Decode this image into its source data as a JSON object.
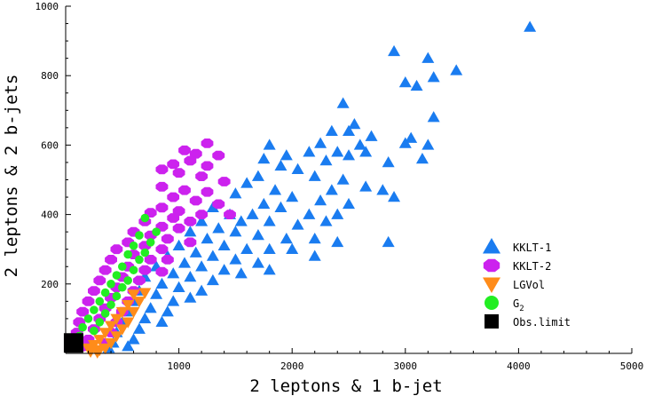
{
  "chart_data": {
    "type": "scatter",
    "title": "",
    "xlabel": "2 leptons & 1 b-jet",
    "ylabel": "2 leptons & 2 b-jets",
    "xlim": [
      0,
      5000
    ],
    "ylim": [
      0,
      1000
    ],
    "x_ticks": [
      1000,
      2000,
      3000,
      4000,
      5000
    ],
    "y_ticks": [
      200,
      400,
      600,
      800,
      1000
    ],
    "grid": false,
    "legend_position": "bottom-right",
    "series": [
      {
        "name": "KKLT-1",
        "marker": "triangle-up",
        "color": "#1a7cf0",
        "points": [
          [
            4100,
            940
          ],
          [
            2900,
            870
          ],
          [
            3200,
            850
          ],
          [
            3450,
            815
          ],
          [
            3250,
            795
          ],
          [
            3000,
            780
          ],
          [
            3100,
            770
          ],
          [
            2450,
            720
          ],
          [
            3250,
            680
          ],
          [
            2550,
            660
          ],
          [
            2500,
            640
          ],
          [
            2700,
            625
          ],
          [
            2350,
            640
          ],
          [
            3050,
            620
          ],
          [
            3000,
            605
          ],
          [
            3200,
            600
          ],
          [
            2250,
            605
          ],
          [
            2600,
            600
          ],
          [
            3150,
            560
          ],
          [
            2400,
            580
          ],
          [
            2650,
            580
          ],
          [
            2500,
            570
          ],
          [
            1800,
            600
          ],
          [
            1950,
            570
          ],
          [
            2150,
            580
          ],
          [
            2300,
            555
          ],
          [
            2850,
            550
          ],
          [
            1750,
            560
          ],
          [
            1900,
            540
          ],
          [
            2050,
            530
          ],
          [
            2200,
            510
          ],
          [
            2450,
            500
          ],
          [
            2650,
            480
          ],
          [
            2350,
            470
          ],
          [
            2800,
            470
          ],
          [
            1700,
            510
          ],
          [
            1600,
            490
          ],
          [
            1850,
            470
          ],
          [
            2000,
            450
          ],
          [
            2250,
            440
          ],
          [
            2500,
            430
          ],
          [
            2900,
            450
          ],
          [
            1500,
            460
          ],
          [
            1750,
            430
          ],
          [
            1900,
            420
          ],
          [
            2150,
            400
          ],
          [
            2400,
            400
          ],
          [
            1650,
            400
          ],
          [
            1800,
            380
          ],
          [
            2050,
            370
          ],
          [
            2300,
            380
          ],
          [
            1300,
            420
          ],
          [
            1450,
            400
          ],
          [
            1550,
            380
          ],
          [
            1200,
            380
          ],
          [
            1350,
            360
          ],
          [
            1500,
            350
          ],
          [
            1700,
            340
          ],
          [
            1950,
            330
          ],
          [
            2200,
            330
          ],
          [
            1100,
            350
          ],
          [
            1250,
            330
          ],
          [
            1400,
            310
          ],
          [
            1600,
            300
          ],
          [
            1800,
            300
          ],
          [
            2000,
            300
          ],
          [
            2400,
            320
          ],
          [
            2850,
            320
          ],
          [
            1000,
            310
          ],
          [
            1150,
            290
          ],
          [
            1300,
            280
          ],
          [
            1500,
            270
          ],
          [
            1700,
            260
          ],
          [
            900,
            280
          ],
          [
            1050,
            260
          ],
          [
            1200,
            250
          ],
          [
            1400,
            240
          ],
          [
            1800,
            240
          ],
          [
            2200,
            280
          ],
          [
            800,
            250
          ],
          [
            950,
            230
          ],
          [
            1100,
            220
          ],
          [
            1300,
            210
          ],
          [
            1550,
            230
          ],
          [
            700,
            220
          ],
          [
            850,
            200
          ],
          [
            1000,
            190
          ],
          [
            1200,
            180
          ],
          [
            650,
            180
          ],
          [
            800,
            170
          ],
          [
            950,
            150
          ],
          [
            1100,
            160
          ],
          [
            600,
            150
          ],
          [
            750,
            130
          ],
          [
            900,
            120
          ],
          [
            550,
            120
          ],
          [
            700,
            100
          ],
          [
            850,
            90
          ],
          [
            500,
            90
          ],
          [
            650,
            70
          ],
          [
            450,
            60
          ],
          [
            600,
            40
          ],
          [
            420,
            30
          ],
          [
            550,
            20
          ],
          [
            380,
            15
          ]
        ]
      },
      {
        "name": "KKLT-2",
        "marker": "octagon",
        "color": "#cc22ee",
        "points": [
          [
            1250,
            605
          ],
          [
            1050,
            585
          ],
          [
            1150,
            575
          ],
          [
            1350,
            570
          ],
          [
            1100,
            555
          ],
          [
            950,
            545
          ],
          [
            1250,
            540
          ],
          [
            850,
            530
          ],
          [
            1000,
            520
          ],
          [
            1200,
            510
          ],
          [
            1400,
            495
          ],
          [
            850,
            480
          ],
          [
            1050,
            470
          ],
          [
            1250,
            465
          ],
          [
            950,
            450
          ],
          [
            1150,
            440
          ],
          [
            1350,
            430
          ],
          [
            850,
            420
          ],
          [
            1000,
            410
          ],
          [
            1200,
            400
          ],
          [
            750,
            405
          ],
          [
            950,
            390
          ],
          [
            1100,
            380
          ],
          [
            1450,
            400
          ],
          [
            700,
            380
          ],
          [
            850,
            365
          ],
          [
            1000,
            360
          ],
          [
            600,
            350
          ],
          [
            750,
            340
          ],
          [
            900,
            330
          ],
          [
            1100,
            320
          ],
          [
            550,
            320
          ],
          [
            700,
            310
          ],
          [
            850,
            300
          ],
          [
            450,
            300
          ],
          [
            600,
            285
          ],
          [
            750,
            270
          ],
          [
            900,
            270
          ],
          [
            400,
            270
          ],
          [
            550,
            250
          ],
          [
            700,
            240
          ],
          [
            850,
            235
          ],
          [
            350,
            240
          ],
          [
            500,
            220
          ],
          [
            650,
            210
          ],
          [
            300,
            210
          ],
          [
            450,
            190
          ],
          [
            600,
            180
          ],
          [
            250,
            180
          ],
          [
            400,
            160
          ],
          [
            550,
            150
          ],
          [
            200,
            150
          ],
          [
            350,
            130
          ],
          [
            500,
            120
          ],
          [
            150,
            120
          ],
          [
            300,
            100
          ],
          [
            450,
            90
          ],
          [
            120,
            90
          ],
          [
            250,
            70
          ],
          [
            400,
            60
          ],
          [
            100,
            60
          ],
          [
            200,
            40
          ],
          [
            350,
            30
          ],
          [
            90,
            30
          ],
          [
            150,
            20
          ]
        ]
      },
      {
        "name": "LGVol",
        "marker": "triangle-down",
        "color": "#ff8c1a",
        "points": [
          [
            700,
            175
          ],
          [
            600,
            170
          ],
          [
            650,
            150
          ],
          [
            550,
            140
          ],
          [
            500,
            120
          ],
          [
            600,
            120
          ],
          [
            450,
            100
          ],
          [
            550,
            90
          ],
          [
            400,
            80
          ],
          [
            500,
            70
          ],
          [
            350,
            60
          ],
          [
            450,
            50
          ],
          [
            300,
            40
          ],
          [
            400,
            30
          ],
          [
            250,
            25
          ],
          [
            350,
            15
          ],
          [
            200,
            15
          ],
          [
            300,
            10
          ],
          [
            220,
            5
          ],
          [
            280,
            3
          ]
        ]
      },
      {
        "name": "G2",
        "marker": "circle",
        "color": "#22ee22",
        "points": [
          [
            700,
            390
          ],
          [
            800,
            350
          ],
          [
            650,
            340
          ],
          [
            750,
            320
          ],
          [
            600,
            310
          ],
          [
            700,
            290
          ],
          [
            550,
            285
          ],
          [
            650,
            270
          ],
          [
            500,
            250
          ],
          [
            600,
            240
          ],
          [
            450,
            225
          ],
          [
            550,
            210
          ],
          [
            400,
            200
          ],
          [
            500,
            190
          ],
          [
            350,
            175
          ],
          [
            450,
            165
          ],
          [
            300,
            150
          ],
          [
            400,
            140
          ],
          [
            250,
            125
          ],
          [
            350,
            115
          ],
          [
            200,
            100
          ],
          [
            300,
            90
          ],
          [
            150,
            75
          ],
          [
            250,
            65
          ],
          [
            120,
            50
          ]
        ]
      },
      {
        "name": "Obs.limit",
        "marker": "square",
        "color": "#000000",
        "points": [
          [
            70,
            30
          ]
        ]
      }
    ]
  }
}
